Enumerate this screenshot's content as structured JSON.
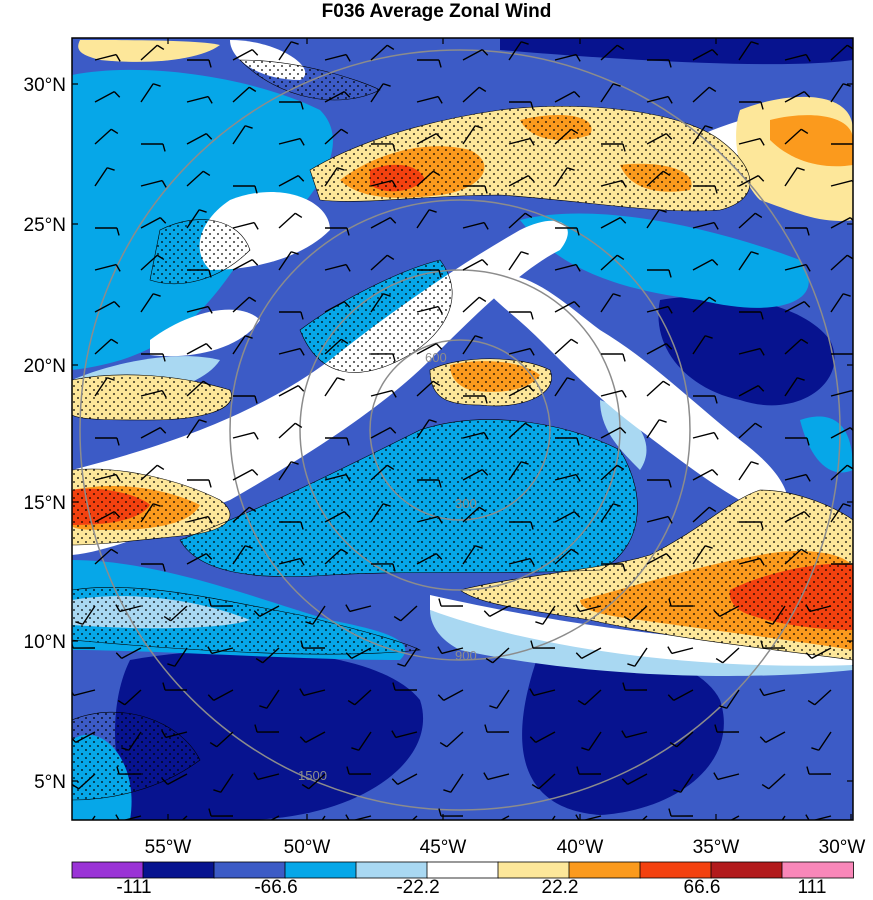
{
  "title": "F036 Average Zonal Wind",
  "lat_labels": [
    "30°N",
    "25°N",
    "20°N",
    "15°N",
    "10°N",
    "5°N"
  ],
  "lon_labels": [
    "55°W",
    "50°W",
    "45°W",
    "40°W",
    "35°W",
    "30°W"
  ],
  "colorbar": {
    "colors": [
      "#9a33d6",
      "#07138f",
      "#3c5bc6",
      "#06a7e8",
      "#a9d8f2",
      "#ffffff",
      "#fde79a",
      "#fb9a1d",
      "#f3410f",
      "#b21a1c",
      "#f987b9"
    ],
    "tick_labels": [
      "-111",
      "-66.6",
      "-22.2",
      "22.2",
      "66.6",
      "111"
    ]
  },
  "range_ring_labels": [
    "300",
    "600",
    "900",
    "1500"
  ]
}
